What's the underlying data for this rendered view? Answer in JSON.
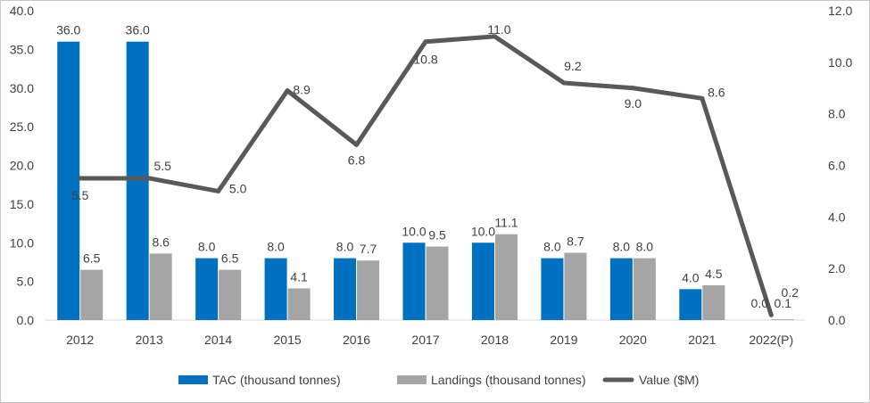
{
  "chart_data": {
    "type": "bar",
    "categories": [
      "2012",
      "2013",
      "2014",
      "2015",
      "2016",
      "2017",
      "2018",
      "2019",
      "2020",
      "2021",
      "2022(P)"
    ],
    "series": [
      {
        "name": "TAC (thousand tonnes)",
        "kind": "bar",
        "axis": "left",
        "color": "#0070C0",
        "values": [
          36.0,
          36.0,
          8.0,
          8.0,
          8.0,
          10.0,
          10.0,
          8.0,
          8.0,
          4.0,
          0.0
        ],
        "labels": [
          "36.0",
          "36.0",
          "8.0",
          "8.0",
          "8.0",
          "10.0",
          "10.0",
          "8.0",
          "8.0",
          "4.0",
          "0.0"
        ]
      },
      {
        "name": "Landings (thousand tonnes)",
        "kind": "bar",
        "axis": "left",
        "color": "#A5A5A5",
        "values": [
          6.5,
          8.6,
          6.5,
          4.1,
          7.7,
          9.5,
          11.1,
          8.7,
          8.0,
          4.5,
          0.1
        ],
        "labels": [
          "6.5",
          "8.6",
          "6.5",
          "4.1",
          "7.7",
          "9.5",
          "11.1",
          "8.7",
          "8.0",
          "4.5",
          "0.1"
        ]
      },
      {
        "name": "Value ($M)",
        "kind": "line",
        "axis": "right",
        "color": "#595959",
        "values": [
          5.5,
          5.5,
          5.0,
          8.9,
          6.8,
          10.8,
          11.0,
          9.2,
          9.0,
          8.6,
          0.2
        ],
        "labels": [
          "5.5",
          "5.5",
          "5.0",
          "8.9",
          "6.8",
          "10.8",
          "11.0",
          "9.2",
          "9.0",
          "8.6",
          "0.2"
        ]
      }
    ],
    "y_left": {
      "ylim": [
        0,
        40
      ],
      "ticks": [
        "0.0",
        "5.0",
        "10.0",
        "15.0",
        "20.0",
        "25.0",
        "30.0",
        "35.0",
        "40.0"
      ]
    },
    "y_right": {
      "ylim": [
        0,
        12
      ],
      "ticks": [
        "0.0",
        "2.0",
        "4.0",
        "6.0",
        "8.0",
        "10.0",
        "12.0"
      ]
    },
    "title": "",
    "xlabel": "",
    "ylabel": "",
    "grid": false,
    "legend_position": "bottom"
  }
}
